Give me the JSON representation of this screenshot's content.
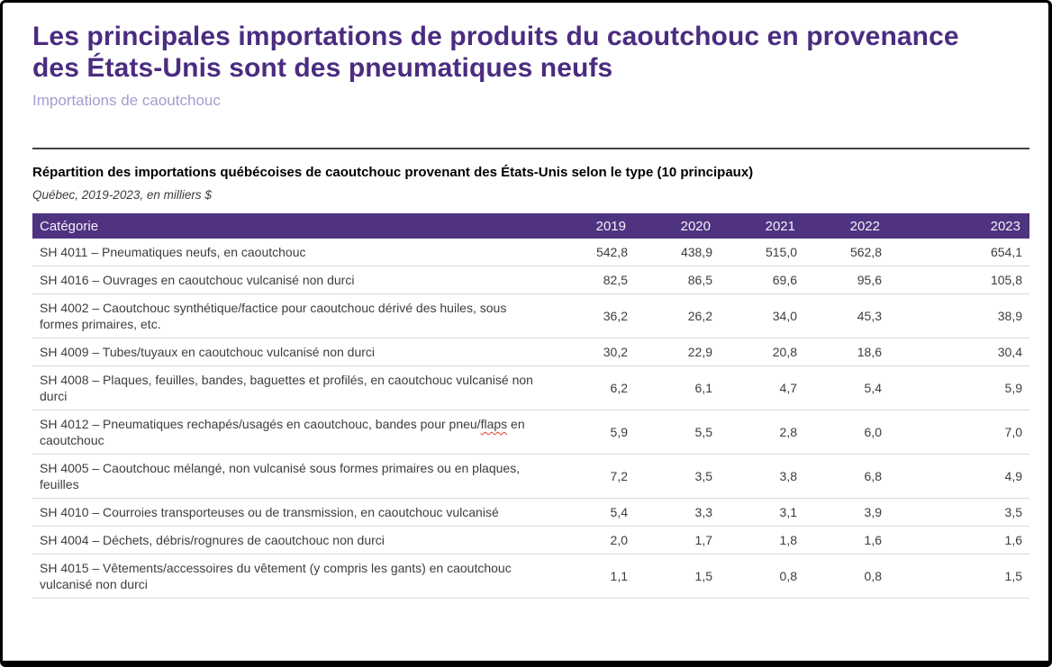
{
  "page": {
    "title": "Les principales importations de produits du caoutchouc en provenance des États-Unis sont des pneumatiques neufs",
    "subtitle": "Importations de caoutchouc"
  },
  "colors": {
    "title_purple": "#4b2c80",
    "subtitle_lavender": "#a89bce",
    "header_purple": "#4f3381",
    "row_border_gray": "#d9d9d9",
    "spellcheck_red": "#e03c31"
  },
  "table": {
    "title": "Répartition des importations québécoises de caoutchouc provenant des États-Unis selon le type (10 principaux)",
    "note": "Québec, 2019-2023, en milliers $",
    "columns": [
      "Catégorie",
      "2019",
      "2020",
      "2021",
      "2022",
      "2023"
    ],
    "rows": [
      {
        "category": "SH 4011 – Pneumatiques neufs, en caoutchouc",
        "values": [
          "542,8",
          "438,9",
          "515,0",
          "562,8",
          "654,1"
        ]
      },
      {
        "category": "SH 4016 – Ouvrages en caoutchouc vulcanisé non durci",
        "values": [
          "82,5",
          "86,5",
          "69,6",
          "95,6",
          "105,8"
        ]
      },
      {
        "category": "SH 4002 – Caoutchouc synthétique/factice pour caoutchouc dérivé des huiles, sous formes primaires, etc.",
        "values": [
          "36,2",
          "26,2",
          "34,0",
          "45,3",
          "38,9"
        ]
      },
      {
        "category": "SH 4009 – Tubes/tuyaux en caoutchouc vulcanisé non durci",
        "values": [
          "30,2",
          "22,9",
          "20,8",
          "18,6",
          "30,4"
        ]
      },
      {
        "category": "SH 4008 – Plaques, feuilles, bandes, baguettes et profilés, en caoutchouc vulcanisé non durci",
        "values": [
          "6,2",
          "6,1",
          "4,7",
          "5,4",
          "5,9"
        ]
      },
      {
        "category": "SH 4012 – Pneumatiques rechapés/usagés en caoutchouc, bandes pour pneu/flaps en caoutchouc",
        "misspelled": "flaps",
        "values": [
          "5,9",
          "5,5",
          "2,8",
          "6,0",
          "7,0"
        ]
      },
      {
        "category": "SH 4005 – Caoutchouc mélangé, non vulcanisé sous formes primaires ou en plaques, feuilles",
        "values": [
          "7,2",
          "3,5",
          "3,8",
          "6,8",
          "4,9"
        ]
      },
      {
        "category": "SH 4010 – Courroies transporteuses ou de transmission, en caoutchouc vulcanisé",
        "values": [
          "5,4",
          "3,3",
          "3,1",
          "3,9",
          "3,5"
        ]
      },
      {
        "category": "SH 4004 – Déchets, débris/rognures de caoutchouc non durci",
        "values": [
          "2,0",
          "1,7",
          "1,8",
          "1,6",
          "1,6"
        ]
      },
      {
        "category": "SH 4015 – Vêtements/accessoires du vêtement (y compris les gants) en caoutchouc vulcanisé non durci",
        "values": [
          "1,1",
          "1,5",
          "0,8",
          "0,8",
          "1,5"
        ]
      }
    ]
  }
}
